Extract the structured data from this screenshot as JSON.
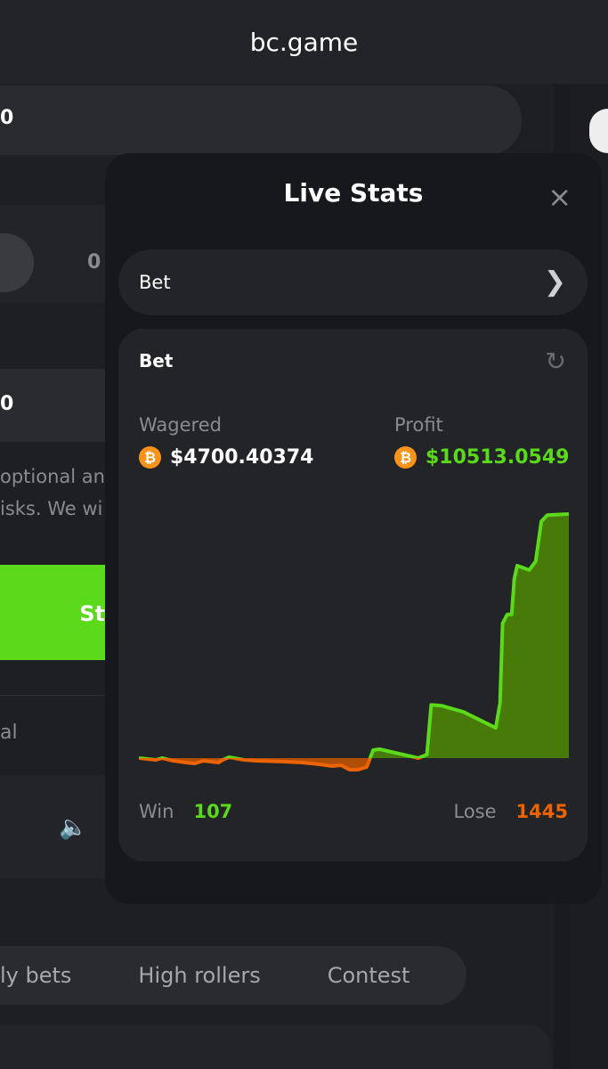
{
  "header": {
    "title": "bc.game"
  },
  "background": {
    "amount_1": "0",
    "toggle_value": "0",
    "amount_2": "0",
    "note_line1": "optional an",
    "note_line2": "isks. We wi",
    "start_button": "St",
    "row_label": "al",
    "tabs": [
      "ly bets",
      "High rollers",
      "Contest"
    ]
  },
  "modal": {
    "title": "Live Stats",
    "close": "×",
    "selector": {
      "label": "Bet",
      "icon": "chevron-right-icon"
    },
    "card": {
      "title": "Bet",
      "refresh_icon": "refresh-icon",
      "wagered_label": "Wagered",
      "wagered_value": "$4700.40374",
      "profit_label": "Profit",
      "profit_value": "$10513.0549",
      "win_label": "Win",
      "win_value": "107",
      "lose_label": "Lose",
      "lose_value": "1445"
    }
  },
  "colors": {
    "profit": "#5bd91b",
    "loss": "#ed6300",
    "positive_fill": "#487a0a",
    "negative_fill": "#b04d06",
    "btc": "#f7931a"
  },
  "chart_data": {
    "type": "area",
    "title": "",
    "xlabel": "",
    "ylabel": "",
    "grid": false,
    "x": [
      0,
      2,
      4,
      5.4,
      8,
      11,
      13,
      15,
      18.5,
      19.5,
      21,
      24.5,
      27.5,
      34,
      38,
      42,
      45,
      47,
      49,
      51,
      53,
      54.5,
      56,
      65,
      67,
      68,
      70.5,
      75.5,
      83,
      84,
      84.6,
      85.7,
      86.7,
      87.3,
      88,
      90.8,
      92.3,
      93.6,
      95,
      100
    ],
    "values": [
      0,
      -38,
      -76,
      0,
      -115,
      -191,
      -229,
      -115,
      -191,
      -76,
      38,
      -76,
      -115,
      -153,
      -191,
      -267,
      -344,
      -306,
      -497,
      -497,
      -382,
      344,
      382,
      0,
      153,
      2292,
      2254,
      1986,
      1299,
      2368,
      5806,
      6188,
      6188,
      7716,
      8289,
      8098,
      8480,
      10199,
      10467,
      10513
    ]
  }
}
